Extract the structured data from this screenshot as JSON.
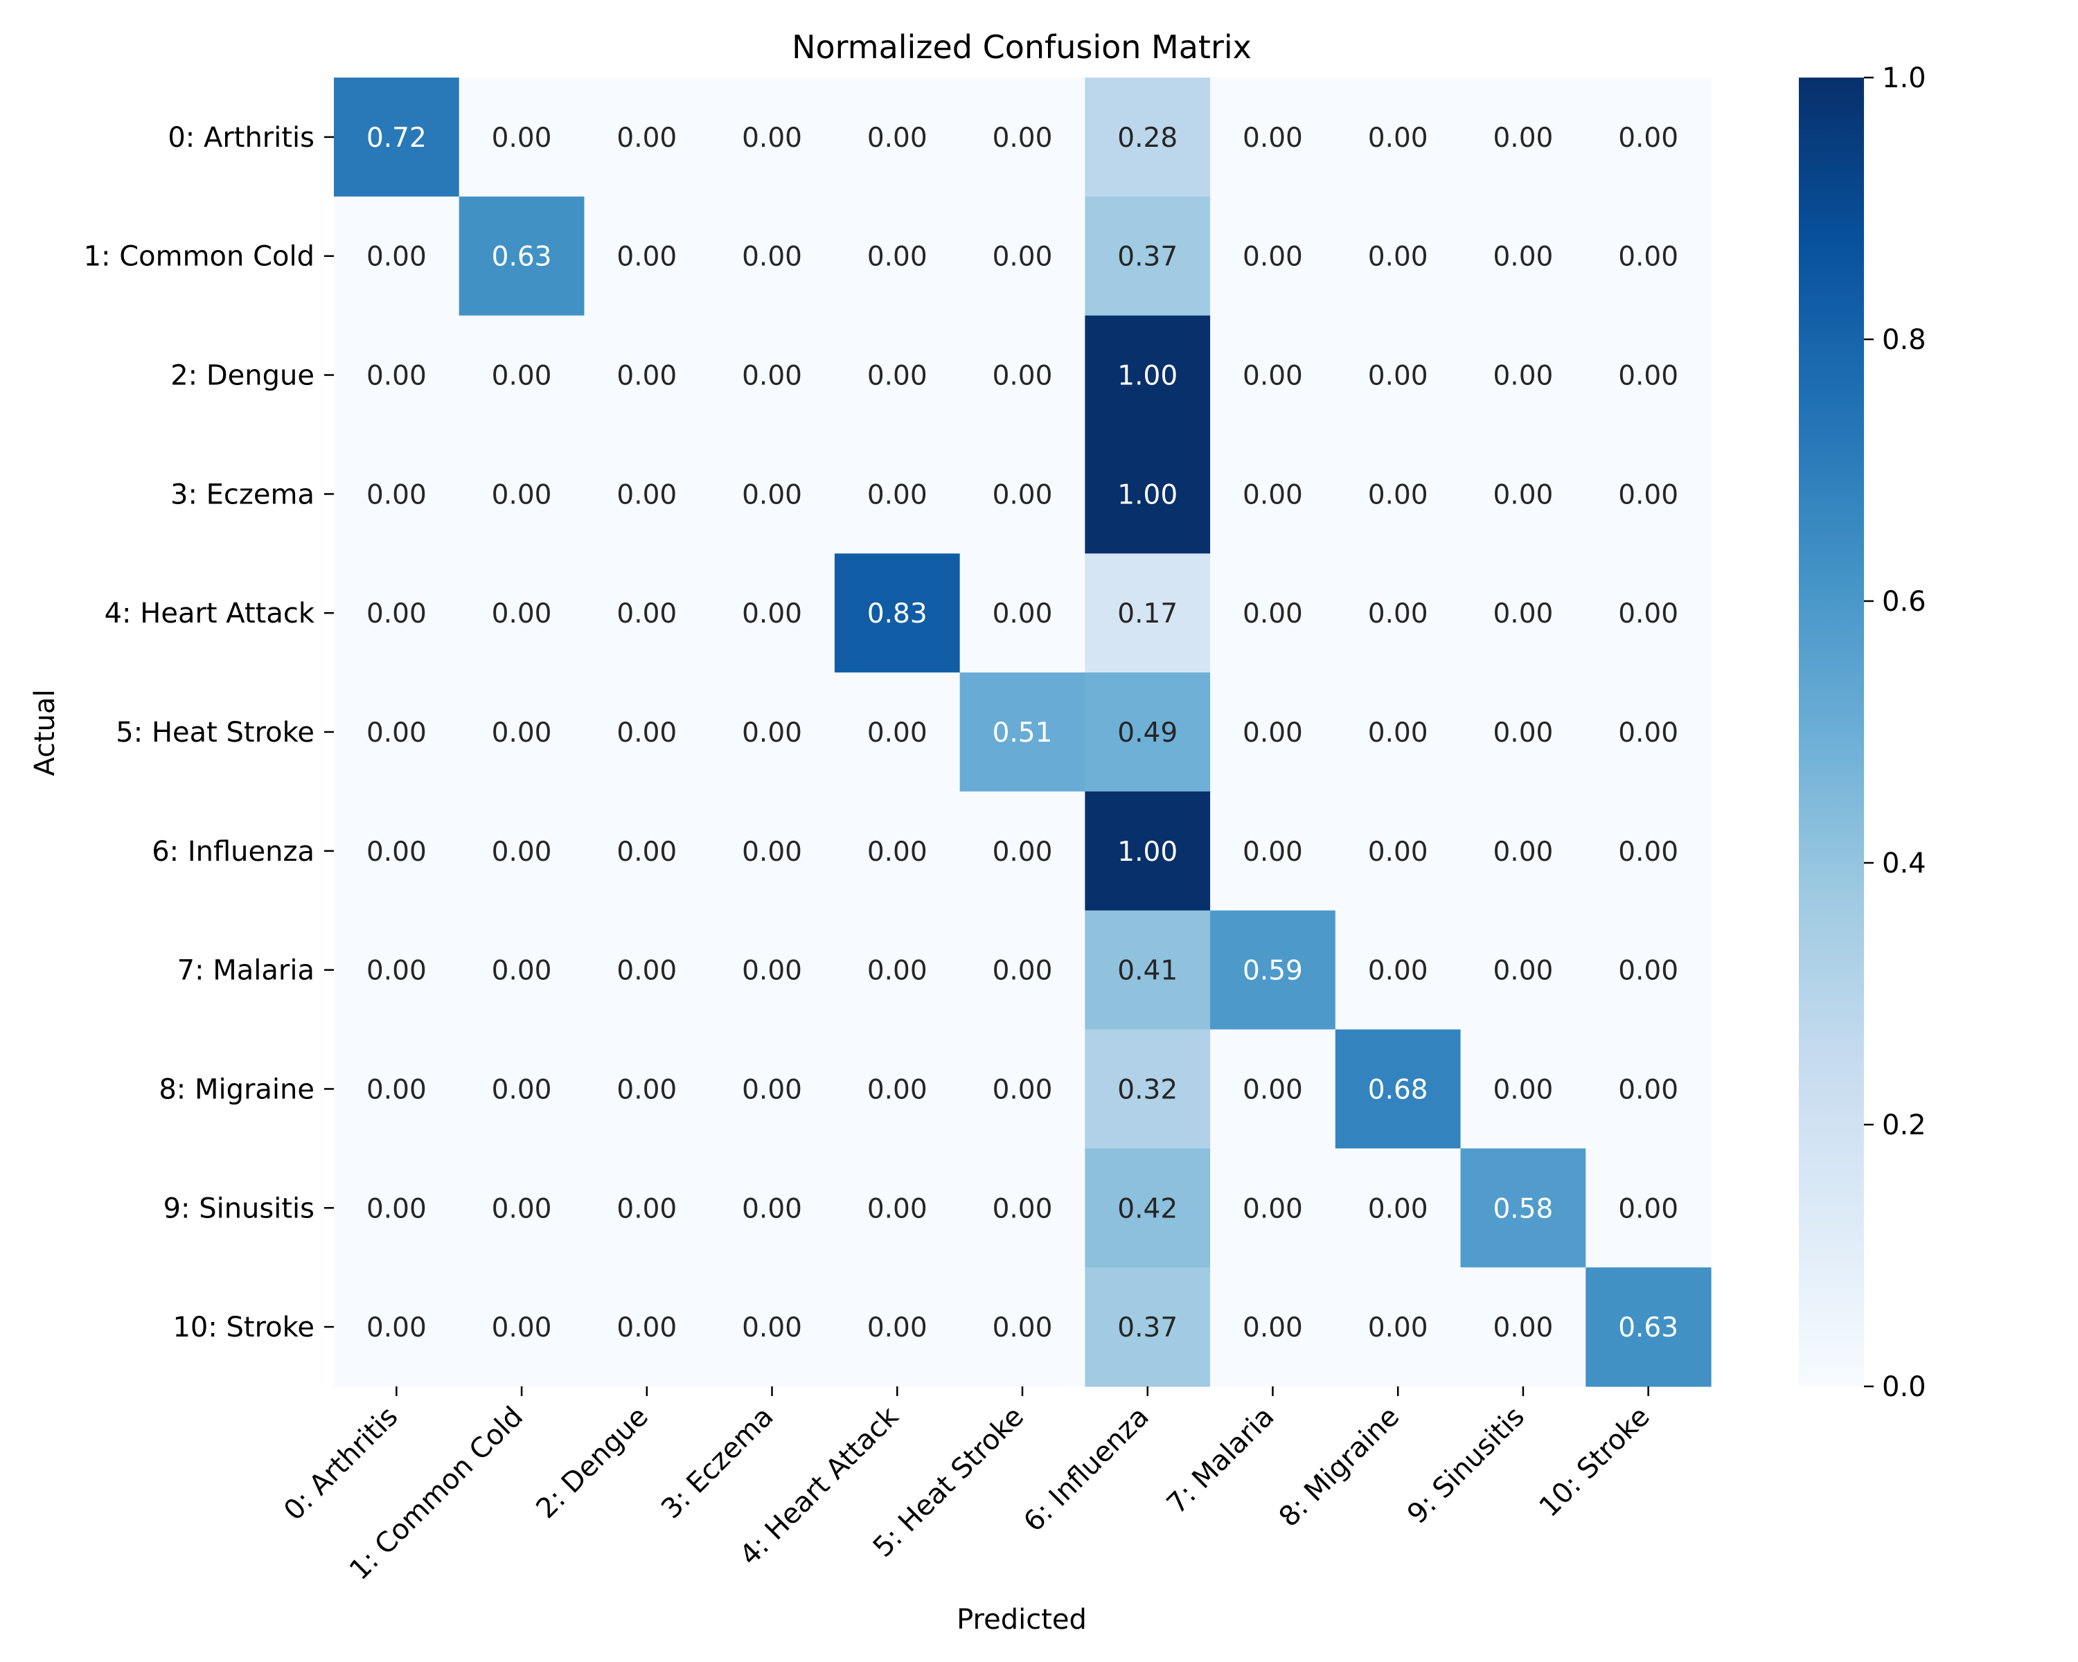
{
  "chart_data": {
    "type": "heatmap",
    "title": "Normalized Confusion Matrix",
    "xlabel": "Predicted",
    "ylabel": "Actual",
    "row_labels": [
      "0: Arthritis",
      "1: Common Cold",
      "2: Dengue",
      "3: Eczema",
      "4: Heart Attack",
      "5: Heat Stroke",
      "6: Influenza",
      "7: Malaria",
      "8: Migraine",
      "9: Sinusitis",
      "10: Stroke"
    ],
    "col_labels": [
      "0: Arthritis",
      "1: Common Cold",
      "2: Dengue",
      "3: Eczema",
      "4: Heart Attack",
      "5: Heat Stroke",
      "6: Influenza",
      "7: Malaria",
      "8: Migraine",
      "9: Sinusitis",
      "10: Stroke"
    ],
    "values": [
      [
        0.72,
        0.0,
        0.0,
        0.0,
        0.0,
        0.0,
        0.28,
        0.0,
        0.0,
        0.0,
        0.0
      ],
      [
        0.0,
        0.63,
        0.0,
        0.0,
        0.0,
        0.0,
        0.37,
        0.0,
        0.0,
        0.0,
        0.0
      ],
      [
        0.0,
        0.0,
        0.0,
        0.0,
        0.0,
        0.0,
        1.0,
        0.0,
        0.0,
        0.0,
        0.0
      ],
      [
        0.0,
        0.0,
        0.0,
        0.0,
        0.0,
        0.0,
        1.0,
        0.0,
        0.0,
        0.0,
        0.0
      ],
      [
        0.0,
        0.0,
        0.0,
        0.0,
        0.83,
        0.0,
        0.17,
        0.0,
        0.0,
        0.0,
        0.0
      ],
      [
        0.0,
        0.0,
        0.0,
        0.0,
        0.0,
        0.51,
        0.49,
        0.0,
        0.0,
        0.0,
        0.0
      ],
      [
        0.0,
        0.0,
        0.0,
        0.0,
        0.0,
        0.0,
        1.0,
        0.0,
        0.0,
        0.0,
        0.0
      ],
      [
        0.0,
        0.0,
        0.0,
        0.0,
        0.0,
        0.0,
        0.41,
        0.59,
        0.0,
        0.0,
        0.0
      ],
      [
        0.0,
        0.0,
        0.0,
        0.0,
        0.0,
        0.0,
        0.32,
        0.0,
        0.68,
        0.0,
        0.0
      ],
      [
        0.0,
        0.0,
        0.0,
        0.0,
        0.0,
        0.0,
        0.42,
        0.0,
        0.0,
        0.58,
        0.0
      ],
      [
        0.0,
        0.0,
        0.0,
        0.0,
        0.0,
        0.0,
        0.37,
        0.0,
        0.0,
        0.0,
        0.63
      ]
    ],
    "value_format": "0.00",
    "colorbar": {
      "range": [
        0.0,
        1.0
      ],
      "ticks": [
        "0.0",
        "0.2",
        "0.4",
        "0.6",
        "0.8",
        "1.0"
      ],
      "colormap": "Blues",
      "colormap_stops": [
        "#f7fbff",
        "#deebf7",
        "#c6dbef",
        "#9ecae1",
        "#6baed6",
        "#4292c6",
        "#2171b5",
        "#08519c",
        "#08306b"
      ]
    },
    "text_colors": {
      "dark": "#262626",
      "light": "#ffffff"
    },
    "grid": false
  }
}
